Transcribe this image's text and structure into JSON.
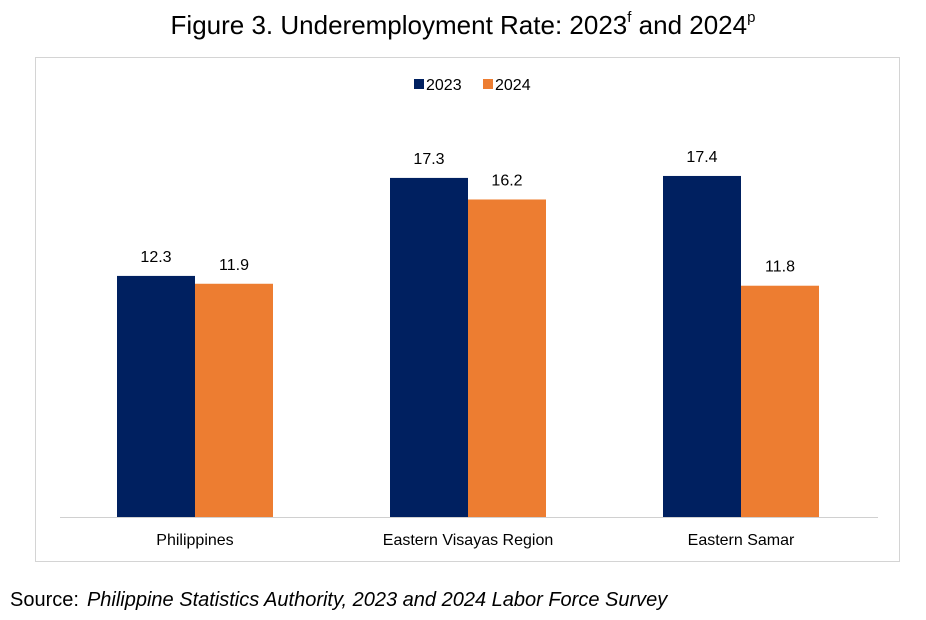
{
  "title": {
    "main": "Figure 3. Underemployment Rate: 2023",
    "sup1": "f",
    "mid": " and 2024",
    "sup2": "p"
  },
  "source": {
    "label": "Source:",
    "text": "Philippine Statistics Authority, 2023 and 2024 Labor Force Survey"
  },
  "chart_data": {
    "type": "bar",
    "categories": [
      "Philippines",
      "Eastern Visayas Region",
      "Eastern Samar"
    ],
    "series": [
      {
        "name": "2023",
        "values": [
          12.3,
          17.3,
          17.4
        ],
        "color": "#002060"
      },
      {
        "name": "2024",
        "values": [
          11.9,
          16.2,
          11.8
        ],
        "color": "#ED7D31"
      }
    ],
    "ylim": [
      0,
      20
    ],
    "grid": false,
    "legend": "top-center",
    "data_labels": true
  }
}
